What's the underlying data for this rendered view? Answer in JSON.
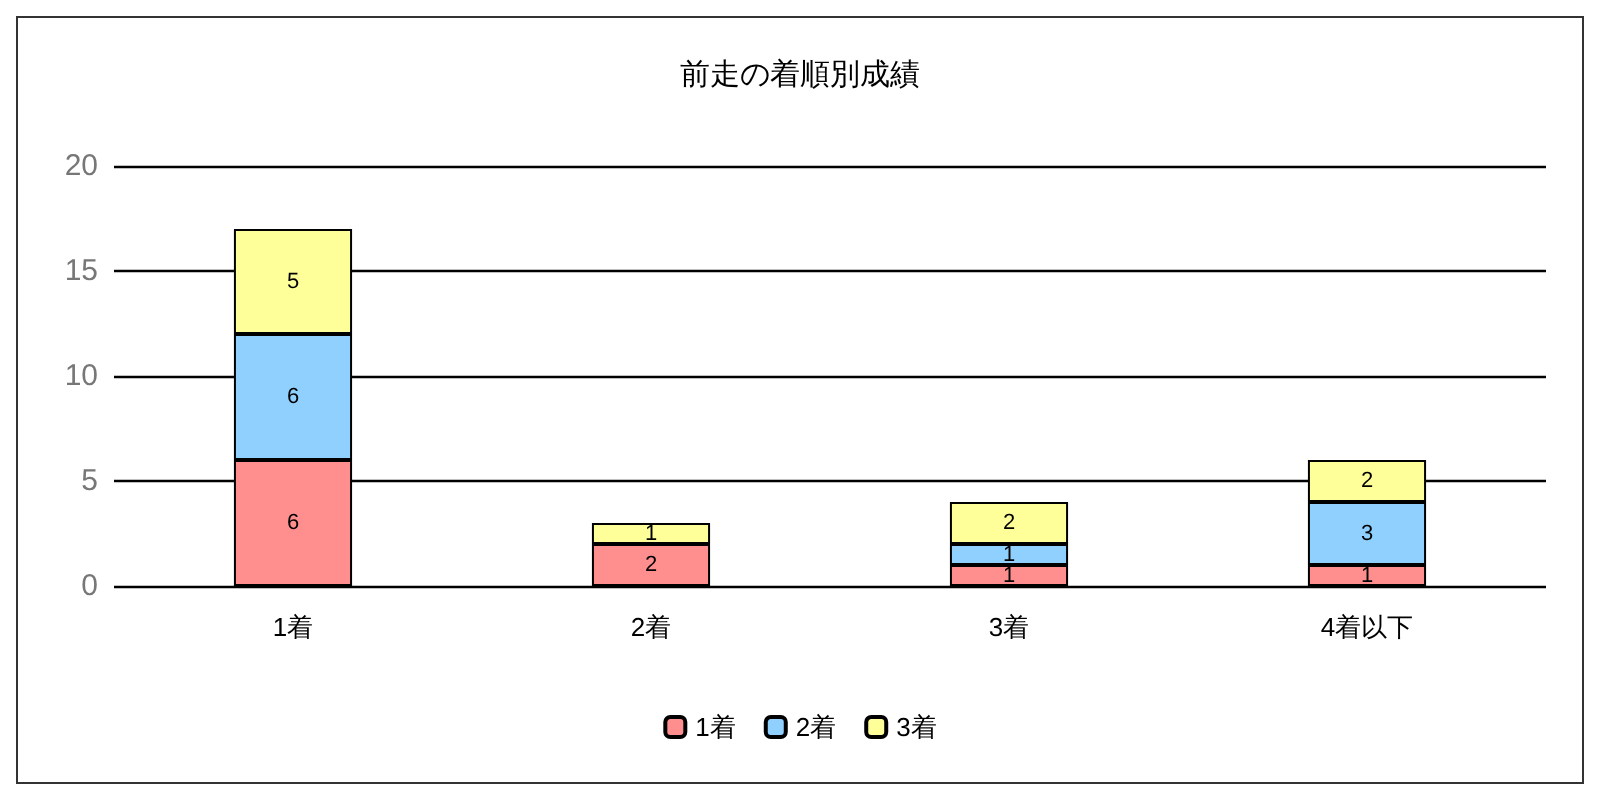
{
  "chart_data": {
    "type": "bar",
    "title": "前走の着順別成績",
    "categories": [
      "1着",
      "2着",
      "3着",
      "4着以下"
    ],
    "stacked": true,
    "data_labels": true,
    "ylim": [
      0,
      20
    ],
    "yticks": [
      0,
      5,
      10,
      15,
      20
    ],
    "grid": "y",
    "legend": "bottom",
    "series": [
      {
        "name": "1着",
        "color": "#ff8f8f",
        "values": [
          6,
          2,
          1,
          1
        ]
      },
      {
        "name": "2着",
        "color": "#8fd0ff",
        "values": [
          6,
          null,
          1,
          3
        ]
      },
      {
        "name": "3着",
        "color": "#ffff99",
        "values": [
          5,
          1,
          2,
          2
        ]
      }
    ]
  }
}
